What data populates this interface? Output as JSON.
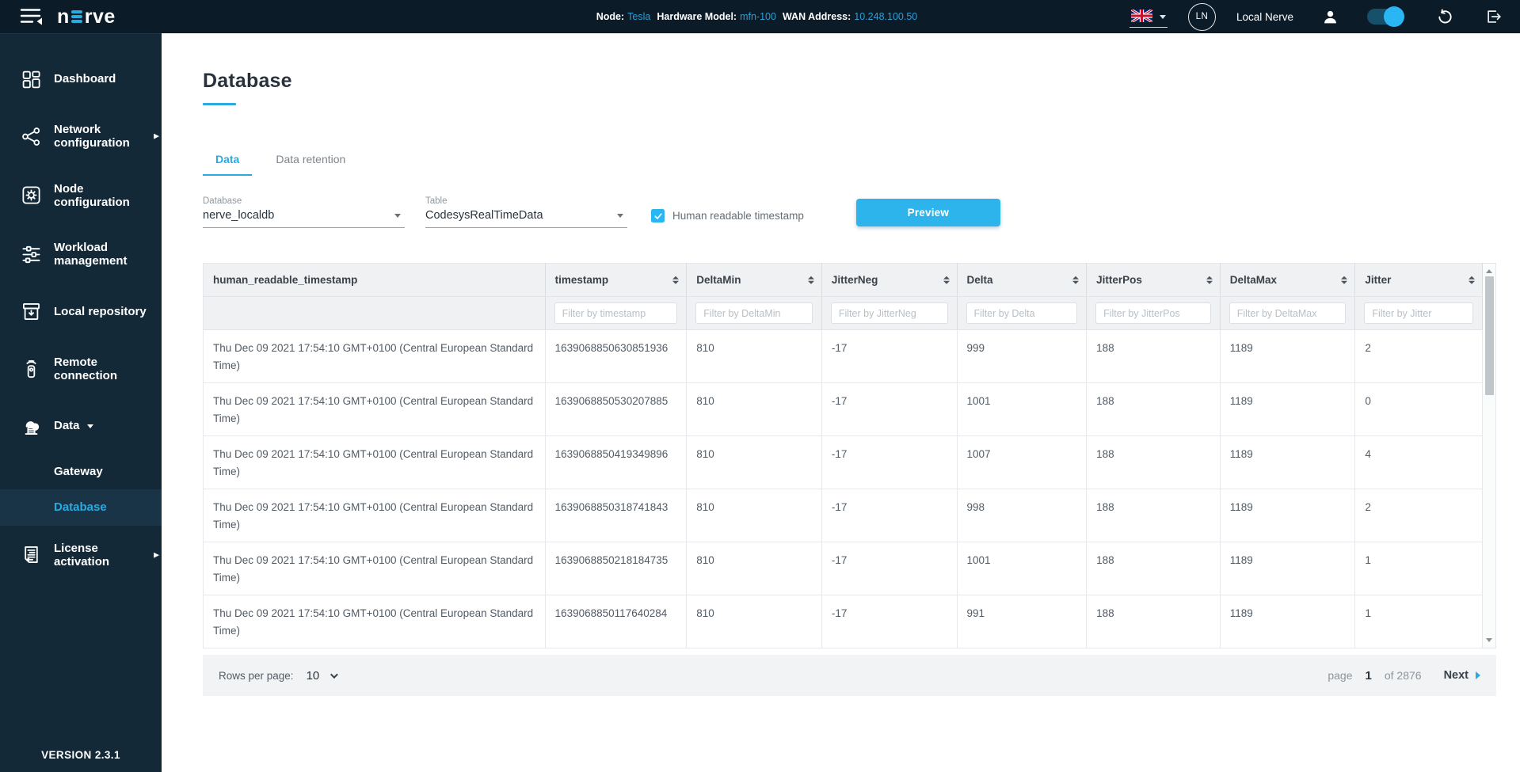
{
  "colors": {
    "accent": "#29abe2",
    "button": "#2eb4ec",
    "toggle": "#29b6f2",
    "topbar": "#0c1b28",
    "sidebar": "#132938",
    "sidebar_active": "#1a3447"
  },
  "topbar": {
    "logo_prefix": "n",
    "logo_suffix": "rve",
    "node_info": [
      {
        "label": "Node:",
        "value": "Tesla"
      },
      {
        "label": "Hardware Model:",
        "value": "mfn-100"
      },
      {
        "label": "WAN Address:",
        "value": "10.248.100.50"
      }
    ],
    "language": "en-GB",
    "avatar": "LN",
    "user_label": "Local Nerve",
    "toggle_on": true
  },
  "sidebar": {
    "items": [
      {
        "label": "Dashboard",
        "icon": "dashboard-icon"
      },
      {
        "label": "Network configuration",
        "icon": "network-icon",
        "chevron": true
      },
      {
        "label": "Node configuration",
        "icon": "node-config-icon"
      },
      {
        "label": "Workload management",
        "icon": "workload-icon"
      },
      {
        "label": "Local repository",
        "icon": "repository-icon"
      },
      {
        "label": "Remote connection",
        "icon": "remote-icon"
      },
      {
        "label": "Data",
        "icon": "data-icon",
        "expanded": true
      },
      {
        "label": "Gateway",
        "sub": true
      },
      {
        "label": "Database",
        "sub": true,
        "active": true
      },
      {
        "label": "License activation",
        "icon": "license-icon",
        "chevron": true
      }
    ],
    "version": "VERSION 2.3.1"
  },
  "main": {
    "title": "Database",
    "tabs": [
      {
        "label": "Data",
        "active": true
      },
      {
        "label": "Data retention",
        "active": false
      }
    ],
    "form": {
      "database_label": "Database",
      "database_value": "nerve_localdb",
      "table_label": "Table",
      "table_value": "CodesysRealTimeData",
      "checkbox_label": "Human readable timestamp",
      "checkbox_checked": true,
      "preview_label": "Preview"
    },
    "table": {
      "columns": [
        {
          "key": "human_readable_timestamp",
          "label": "human_readable_timestamp",
          "sortable": false,
          "filter": null
        },
        {
          "key": "timestamp",
          "label": "timestamp",
          "sortable": true,
          "filter": "Filter by timestamp"
        },
        {
          "key": "DeltaMin",
          "label": "DeltaMin",
          "sortable": true,
          "filter": "Filter by DeltaMin"
        },
        {
          "key": "JitterNeg",
          "label": "JitterNeg",
          "sortable": true,
          "filter": "Filter by JitterNeg"
        },
        {
          "key": "Delta",
          "label": "Delta",
          "sortable": true,
          "filter": "Filter by Delta"
        },
        {
          "key": "JitterPos",
          "label": "JitterPos",
          "sortable": true,
          "filter": "Filter by JitterPos"
        },
        {
          "key": "DeltaMax",
          "label": "DeltaMax",
          "sortable": true,
          "filter": "Filter by DeltaMax"
        },
        {
          "key": "Jitter",
          "label": "Jitter",
          "sortable": true,
          "filter": "Filter by Jitter"
        }
      ],
      "rows": [
        [
          "Thu Dec 09 2021 17:54:10 GMT+0100 (Central European Standard Time)",
          "1639068850630851936",
          "810",
          "-17",
          "999",
          "188",
          "1189",
          "2"
        ],
        [
          "Thu Dec 09 2021 17:54:10 GMT+0100 (Central European Standard Time)",
          "1639068850530207885",
          "810",
          "-17",
          "1001",
          "188",
          "1189",
          "0"
        ],
        [
          "Thu Dec 09 2021 17:54:10 GMT+0100 (Central European Standard Time)",
          "1639068850419349896",
          "810",
          "-17",
          "1007",
          "188",
          "1189",
          "4"
        ],
        [
          "Thu Dec 09 2021 17:54:10 GMT+0100 (Central European Standard Time)",
          "1639068850318741843",
          "810",
          "-17",
          "998",
          "188",
          "1189",
          "2"
        ],
        [
          "Thu Dec 09 2021 17:54:10 GMT+0100 (Central European Standard Time)",
          "1639068850218184735",
          "810",
          "-17",
          "1001",
          "188",
          "1189",
          "1"
        ],
        [
          "Thu Dec 09 2021 17:54:10 GMT+0100 (Central European Standard Time)",
          "1639068850117640284",
          "810",
          "-17",
          "991",
          "188",
          "1189",
          "1"
        ]
      ]
    },
    "pagination": {
      "rows_per_page_label": "Rows per page:",
      "rows_per_page_value": "10",
      "page_label": "page",
      "page_value": "1",
      "of_label": "of 2876",
      "next_label": "Next"
    }
  }
}
